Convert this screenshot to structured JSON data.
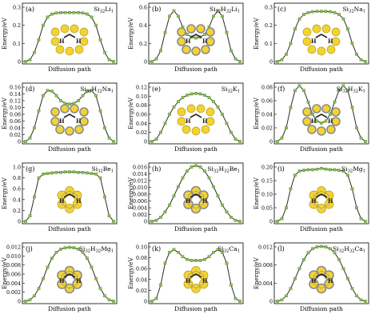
{
  "figure": {
    "colors": {
      "curve": "#2b2b2b",
      "marker": "#8bc34a",
      "markerEdge": "#4e7a25",
      "atom": "#f2d335",
      "atomEdge": "#b89b10",
      "ring": "#8a8a8a",
      "hydrogen": "#222222"
    }
  },
  "chart_data": [
    {
      "type": "line",
      "panel": "(a)",
      "label_main": "Si",
      "label_sub": "32",
      "label_main2": "Li",
      "label_sub2": "1",
      "label_tail": "",
      "xlabel": "Diffusion path",
      "ylabel": "Energy/eV",
      "ylim": [
        0,
        0.3
      ],
      "yticks": [
        "0",
        "0.1",
        "0.2",
        "0.3"
      ],
      "x": [
        0,
        0.05,
        0.1,
        0.15,
        0.2,
        0.25,
        0.3,
        0.35,
        0.4,
        0.45,
        0.5,
        0.55,
        0.6,
        0.65,
        0.7,
        0.75,
        0.8,
        0.85,
        0.9,
        0.95,
        1
      ],
      "y": [
        0,
        0.01,
        0.05,
        0.12,
        0.2,
        0.245,
        0.262,
        0.268,
        0.27,
        0.27,
        0.27,
        0.27,
        0.27,
        0.268,
        0.262,
        0.245,
        0.2,
        0.12,
        0.05,
        0.01,
        0
      ]
    },
    {
      "type": "line",
      "panel": "(b)",
      "label_main": "Si",
      "label_sub": "32",
      "label_main2": "H",
      "label_sub2": "32",
      "label_tail": "Li",
      "label_tail_sub": "1",
      "xlabel": "Diffusion path",
      "ylabel": "Energy/eV",
      "ylim": [
        0,
        0.6
      ],
      "yticks": [
        "0",
        "0.2",
        "0.4",
        "0.6"
      ],
      "x": [
        0,
        0.05,
        0.1,
        0.15,
        0.2,
        0.25,
        0.3,
        0.35,
        0.4,
        0.45,
        0.5,
        0.55,
        0.6,
        0.65,
        0.7,
        0.75,
        0.8,
        0.85,
        0.9,
        0.95,
        1
      ],
      "y": [
        0,
        0.03,
        0.12,
        0.32,
        0.5,
        0.56,
        0.5,
        0.38,
        0.3,
        0.27,
        0.26,
        0.27,
        0.3,
        0.38,
        0.5,
        0.56,
        0.5,
        0.32,
        0.12,
        0.03,
        0
      ]
    },
    {
      "type": "line",
      "panel": "(c)",
      "label_main": "Si",
      "label_sub": "32",
      "label_main2": "Na",
      "label_sub2": "1",
      "label_tail": "",
      "xlabel": "Diffusion path",
      "ylabel": "Energy/eV",
      "ylim": [
        0,
        0.3
      ],
      "yticks": [
        "0",
        "0.1",
        "0.2",
        "0.3"
      ],
      "x": [
        0,
        0.05,
        0.1,
        0.15,
        0.2,
        0.25,
        0.3,
        0.35,
        0.4,
        0.45,
        0.5,
        0.55,
        0.6,
        0.65,
        0.7,
        0.75,
        0.8,
        0.85,
        0.9,
        0.95,
        1
      ],
      "y": [
        0,
        0.01,
        0.04,
        0.1,
        0.18,
        0.235,
        0.26,
        0.27,
        0.275,
        0.277,
        0.277,
        0.277,
        0.275,
        0.27,
        0.26,
        0.235,
        0.18,
        0.1,
        0.04,
        0.01,
        0
      ]
    },
    {
      "type": "line",
      "panel": "(d)",
      "label_main": "Si",
      "label_sub": "32",
      "label_main2": "H",
      "label_sub2": "32",
      "label_tail": "Na",
      "label_tail_sub": "1",
      "xlabel": "Diffusion path",
      "ylabel": "Energy/eV",
      "ylim": [
        0,
        0.16
      ],
      "yticks": [
        "0",
        "0.02",
        "0.04",
        "0.06",
        "0.08",
        "0.10",
        "0.12",
        "0.14",
        "0.16"
      ],
      "x": [
        0,
        0.05,
        0.1,
        0.15,
        0.2,
        0.25,
        0.3,
        0.35,
        0.4,
        0.45,
        0.5,
        0.55,
        0.6,
        0.65,
        0.7,
        0.75,
        0.8,
        0.85,
        0.9,
        0.95,
        1
      ],
      "y": [
        0,
        0.01,
        0.04,
        0.09,
        0.135,
        0.15,
        0.148,
        0.135,
        0.12,
        0.112,
        0.11,
        0.112,
        0.12,
        0.135,
        0.148,
        0.15,
        0.135,
        0.09,
        0.04,
        0.01,
        0
      ]
    },
    {
      "type": "line",
      "panel": "(e)",
      "label_main": "Si",
      "label_sub": "32",
      "label_main2": "K",
      "label_sub2": "1",
      "label_tail": "",
      "xlabel": "Diffusion path",
      "ylabel": "Energy/eV",
      "ylim": [
        0,
        0.12
      ],
      "yticks": [
        "0",
        "0.02",
        "0.04",
        "0.06",
        "0.08",
        "0.10",
        "0.12"
      ],
      "x": [
        0,
        0.05,
        0.1,
        0.15,
        0.2,
        0.25,
        0.3,
        0.35,
        0.4,
        0.45,
        0.5,
        0.55,
        0.6,
        0.65,
        0.7,
        0.75,
        0.8,
        0.85,
        0.9,
        0.95,
        1
      ],
      "y": [
        0,
        0.005,
        0.02,
        0.04,
        0.06,
        0.076,
        0.088,
        0.097,
        0.102,
        0.105,
        0.106,
        0.105,
        0.102,
        0.097,
        0.088,
        0.076,
        0.06,
        0.04,
        0.02,
        0.005,
        0
      ]
    },
    {
      "type": "line",
      "panel": "(f)",
      "label_main": "Si",
      "label_sub": "32",
      "label_main2": "H",
      "label_sub2": "32",
      "label_tail": "K",
      "label_tail_sub": "1",
      "xlabel": "Diffusion path",
      "ylabel": "Energy/eV",
      "ylim": [
        0,
        0.08
      ],
      "yticks": [
        "0",
        "0.02",
        "0.04",
        "0.06",
        "0.08"
      ],
      "x": [
        0,
        0.05,
        0.1,
        0.15,
        0.2,
        0.25,
        0.3,
        0.35,
        0.4,
        0.45,
        0.5,
        0.55,
        0.6,
        0.65,
        0.7,
        0.75,
        0.8,
        0.85,
        0.9,
        0.95,
        1
      ],
      "y": [
        0,
        0.005,
        0.02,
        0.05,
        0.075,
        0.082,
        0.075,
        0.058,
        0.04,
        0.03,
        0.027,
        0.03,
        0.04,
        0.058,
        0.075,
        0.082,
        0.075,
        0.05,
        0.02,
        0.005,
        0
      ]
    },
    {
      "type": "line",
      "panel": "(g)",
      "label_main": "Si",
      "label_sub": "32",
      "label_main2": "Be",
      "label_sub2": "1",
      "label_tail": "",
      "xlabel": "Diffusion path",
      "ylabel": "Energy/eV",
      "ylim": [
        0,
        1.0
      ],
      "yticks": [
        "0",
        "0.2",
        "0.4",
        "0.6",
        "0.8",
        "1.0"
      ],
      "x": [
        0,
        0.05,
        0.1,
        0.15,
        0.2,
        0.25,
        0.3,
        0.35,
        0.4,
        0.45,
        0.5,
        0.55,
        0.6,
        0.65,
        0.7,
        0.75,
        0.8,
        0.85,
        0.9,
        0.95,
        1
      ],
      "y": [
        0,
        0.1,
        0.45,
        0.8,
        0.87,
        0.88,
        0.89,
        0.9,
        0.9,
        0.91,
        0.91,
        0.91,
        0.9,
        0.9,
        0.89,
        0.88,
        0.87,
        0.8,
        0.45,
        0.1,
        0
      ]
    },
    {
      "type": "line",
      "panel": "(h)",
      "label_main": "Si",
      "label_sub": "32",
      "label_main2": "H",
      "label_sub2": "32",
      "label_tail": "Be",
      "label_tail_sub": "1",
      "xlabel": "Diffusion path",
      "ylabel": "Energy/eV",
      "ylim": [
        0,
        0.016
      ],
      "yticks": [
        "0",
        "0.002",
        "0.004",
        "0.006",
        "0.008",
        "0.010",
        "0.012",
        "0.014",
        "0.016"
      ],
      "x": [
        0,
        0.05,
        0.1,
        0.15,
        0.2,
        0.25,
        0.3,
        0.35,
        0.4,
        0.45,
        0.5,
        0.55,
        0.6,
        0.65,
        0.7,
        0.75,
        0.8,
        0.85,
        0.9,
        0.95,
        1
      ],
      "y": [
        0,
        0.0003,
        0.0012,
        0.0028,
        0.0048,
        0.0075,
        0.0102,
        0.0128,
        0.0148,
        0.016,
        0.0164,
        0.016,
        0.0148,
        0.0128,
        0.0102,
        0.0075,
        0.0048,
        0.0028,
        0.0012,
        0.0003,
        0
      ]
    },
    {
      "type": "line",
      "panel": "(i)",
      "label_main": "Si",
      "label_sub": "32",
      "label_main2": "Mg",
      "label_sub2": "1",
      "label_tail": "",
      "xlabel": "Diffusion path",
      "ylabel": "Energy/eV",
      "ylim": [
        0,
        0.2
      ],
      "yticks": [
        "0",
        "0.05",
        "0.10",
        "0.15",
        "0.20"
      ],
      "x": [
        0,
        0.05,
        0.1,
        0.15,
        0.2,
        0.25,
        0.3,
        0.35,
        0.4,
        0.45,
        0.5,
        0.55,
        0.6,
        0.65,
        0.7,
        0.75,
        0.8,
        0.85,
        0.9,
        0.95,
        1
      ],
      "y": [
        0,
        0.01,
        0.05,
        0.12,
        0.17,
        0.185,
        0.188,
        0.19,
        0.19,
        0.192,
        0.195,
        0.192,
        0.19,
        0.19,
        0.188,
        0.185,
        0.17,
        0.12,
        0.05,
        0.01,
        0
      ]
    },
    {
      "type": "line",
      "panel": "(j)",
      "label_main": "Si",
      "label_sub": "32",
      "label_main2": "H",
      "label_sub2": "32",
      "label_tail": "Mg",
      "label_tail_sub": "1",
      "xlabel": "Diffusion path",
      "ylabel": "Energy/eV",
      "ylim": [
        0,
        0.012
      ],
      "yticks": [
        "0",
        "0.002",
        "0.004",
        "0.006",
        "0.008",
        "0.010",
        "0.012"
      ],
      "x": [
        0,
        0.05,
        0.1,
        0.15,
        0.2,
        0.25,
        0.3,
        0.35,
        0.4,
        0.45,
        0.5,
        0.55,
        0.6,
        0.65,
        0.7,
        0.75,
        0.8,
        0.85,
        0.9,
        0.95,
        1
      ],
      "y": [
        0,
        0.0003,
        0.0012,
        0.0028,
        0.005,
        0.0075,
        0.0095,
        0.0108,
        0.0115,
        0.0118,
        0.0119,
        0.0118,
        0.0115,
        0.0108,
        0.0095,
        0.0075,
        0.005,
        0.0028,
        0.0012,
        0.0003,
        0
      ]
    },
    {
      "type": "line",
      "panel": "(k)",
      "label_main": "Si",
      "label_sub": "32",
      "label_main2": "Ca",
      "label_sub2": "1",
      "label_tail": "",
      "xlabel": "Diffusion path",
      "ylabel": "Energy/eV",
      "ylim": [
        0,
        0.1
      ],
      "yticks": [
        "0",
        "0.02",
        "0.04",
        "0.06",
        "0.08",
        "0.10"
      ],
      "x": [
        0,
        0.05,
        0.1,
        0.15,
        0.2,
        0.25,
        0.3,
        0.35,
        0.4,
        0.45,
        0.5,
        0.55,
        0.6,
        0.65,
        0.7,
        0.75,
        0.8,
        0.85,
        0.9,
        0.95,
        1
      ],
      "y": [
        0,
        0.005,
        0.03,
        0.07,
        0.09,
        0.095,
        0.09,
        0.082,
        0.077,
        0.075,
        0.075,
        0.075,
        0.077,
        0.082,
        0.09,
        0.095,
        0.09,
        0.07,
        0.03,
        0.005,
        0
      ]
    },
    {
      "type": "line",
      "panel": "(l)",
      "label_main": "Si",
      "label_sub": "32",
      "label_main2": "H",
      "label_sub2": "32",
      "label_tail": "Ca",
      "label_tail_sub": "1",
      "xlabel": "Diffusion path",
      "ylabel": "Energy/eV",
      "ylim": [
        0,
        0.012
      ],
      "yticks": [
        "0",
        "0.004",
        "0.008",
        "0.012"
      ],
      "x": [
        0,
        0.05,
        0.1,
        0.15,
        0.2,
        0.25,
        0.3,
        0.35,
        0.4,
        0.45,
        0.5,
        0.55,
        0.6,
        0.65,
        0.7,
        0.75,
        0.8,
        0.85,
        0.9,
        0.95,
        1
      ],
      "y": [
        0,
        0.0003,
        0.0012,
        0.0028,
        0.005,
        0.0072,
        0.0092,
        0.0107,
        0.0116,
        0.012,
        0.0121,
        0.012,
        0.0116,
        0.0107,
        0.0092,
        0.0072,
        0.005,
        0.0028,
        0.0012,
        0.0003,
        0
      ]
    }
  ]
}
